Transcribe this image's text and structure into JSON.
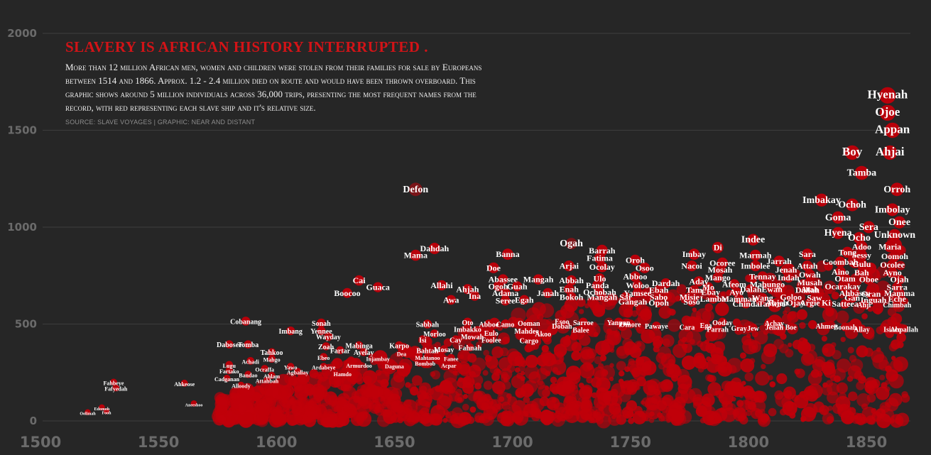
{
  "header": {
    "title": "SLAVERY IS AFRICAN HISTORY INTERRUPTED .",
    "description": "More than 12 million African men, women and children were stolen from their families for sale by Europeans between 1514 and 1866. Approx. 1.2 - 2.4 million died on route and would have been thrown overboard. This graphic shows around 5 million individuals across 36,000 trips, presenting the most frequent names from the record, with red representing each slave ship and it's relative size.",
    "source": "SOURCE: SLAVE VOYAGES | GRAPHIC: NEAR AND DISTANT"
  },
  "colors": {
    "background": "#262626",
    "bubble": "#b8000a",
    "title": "#d31317",
    "text": "#ffffff",
    "grid": "#3d3d3d",
    "tick": "#6b6b6b"
  },
  "chart_data": {
    "type": "scatter",
    "x_axis": {
      "ticks": [
        1500,
        1550,
        1600,
        1650,
        1700,
        1750,
        1800,
        1850
      ],
      "range": [
        1500,
        1870
      ]
    },
    "y_axis": {
      "ticks": [
        0,
        500,
        1000,
        1500,
        2000
      ],
      "range": [
        0,
        2000
      ]
    },
    "grid": "horizontal",
    "points": [
      {
        "name": "Hyenah",
        "x": 1859,
        "y": 1680
      },
      {
        "name": "Ojoe",
        "x": 1859,
        "y": 1590
      },
      {
        "name": "Appan",
        "x": 1861,
        "y": 1500
      },
      {
        "name": "Boy",
        "x": 1844,
        "y": 1385
      },
      {
        "name": "Ahjai",
        "x": 1860,
        "y": 1385
      },
      {
        "name": "Tamba",
        "x": 1848,
        "y": 1280
      },
      {
        "name": "Orroh",
        "x": 1863,
        "y": 1195
      },
      {
        "name": "Defon",
        "x": 1659,
        "y": 1195
      },
      {
        "name": "Imbakay",
        "x": 1831,
        "y": 1140
      },
      {
        "name": "Ochoh",
        "x": 1844,
        "y": 1115
      },
      {
        "name": "Imbolay",
        "x": 1861,
        "y": 1090
      },
      {
        "name": "Goma",
        "x": 1838,
        "y": 1050
      },
      {
        "name": "Onee",
        "x": 1864,
        "y": 1025
      },
      {
        "name": "Sera",
        "x": 1851,
        "y": 1000
      },
      {
        "name": "Hyena",
        "x": 1838,
        "y": 970
      },
      {
        "name": "Unknown",
        "x": 1862,
        "y": 960
      },
      {
        "name": "Ocho",
        "x": 1847,
        "y": 945
      },
      {
        "name": "Indee",
        "x": 1802,
        "y": 935
      },
      {
        "name": "Ogah",
        "x": 1725,
        "y": 915
      },
      {
        "name": "Adoo",
        "x": 1848,
        "y": 900
      },
      {
        "name": "Maria",
        "x": 1860,
        "y": 900
      },
      {
        "name": "Dahdah",
        "x": 1667,
        "y": 890
      },
      {
        "name": "Barrah",
        "x": 1738,
        "y": 880
      },
      {
        "name": "Di",
        "x": 1787,
        "y": 895
      },
      {
        "name": "Tong",
        "x": 1842,
        "y": 870
      },
      {
        "name": "Imbay",
        "x": 1777,
        "y": 860
      },
      {
        "name": "Marmah",
        "x": 1803,
        "y": 855
      },
      {
        "name": "Sara",
        "x": 1825,
        "y": 860
      },
      {
        "name": "Banna",
        "x": 1698,
        "y": 860
      },
      {
        "name": "Sessy",
        "x": 1848,
        "y": 855
      },
      {
        "name": "Oomoh",
        "x": 1862,
        "y": 850
      },
      {
        "name": "Mama",
        "x": 1659,
        "y": 855
      },
      {
        "name": "Fatima",
        "x": 1737,
        "y": 840
      },
      {
        "name": "Oroh",
        "x": 1752,
        "y": 830
      },
      {
        "name": "Jarrah",
        "x": 1813,
        "y": 825
      },
      {
        "name": "Ocoree",
        "x": 1789,
        "y": 815
      },
      {
        "name": "Coombah",
        "x": 1839,
        "y": 820
      },
      {
        "name": "Gulu",
        "x": 1848,
        "y": 810
      },
      {
        "name": "Ocolee",
        "x": 1861,
        "y": 805
      },
      {
        "name": "Arjai",
        "x": 1724,
        "y": 800
      },
      {
        "name": "Ocolay",
        "x": 1738,
        "y": 795
      },
      {
        "name": "Osoo",
        "x": 1756,
        "y": 790
      },
      {
        "name": "Nacoi",
        "x": 1776,
        "y": 800
      },
      {
        "name": "Imbolee",
        "x": 1803,
        "y": 800
      },
      {
        "name": "Attah",
        "x": 1825,
        "y": 800
      },
      {
        "name": "Doe",
        "x": 1692,
        "y": 790
      },
      {
        "name": "Mosah",
        "x": 1788,
        "y": 780
      },
      {
        "name": "Jenah",
        "x": 1816,
        "y": 780
      },
      {
        "name": "Aino",
        "x": 1839,
        "y": 770
      },
      {
        "name": "Bah",
        "x": 1848,
        "y": 765
      },
      {
        "name": "Ayno",
        "x": 1861,
        "y": 765
      },
      {
        "name": "Owah",
        "x": 1826,
        "y": 755
      },
      {
        "name": "Abboo",
        "x": 1752,
        "y": 745
      },
      {
        "name": "Tennay",
        "x": 1806,
        "y": 745
      },
      {
        "name": "Indah",
        "x": 1817,
        "y": 740
      },
      {
        "name": "Ulo",
        "x": 1737,
        "y": 735
      },
      {
        "name": "Mango",
        "x": 1787,
        "y": 740
      },
      {
        "name": "Otam",
        "x": 1841,
        "y": 735
      },
      {
        "name": "Oboe",
        "x": 1851,
        "y": 730
      },
      {
        "name": "Ojah",
        "x": 1864,
        "y": 730
      },
      {
        "name": "Cai",
        "x": 1635,
        "y": 725
      },
      {
        "name": "Abassee",
        "x": 1696,
        "y": 730
      },
      {
        "name": "Mangah",
        "x": 1711,
        "y": 730
      },
      {
        "name": "Abbah",
        "x": 1725,
        "y": 725
      },
      {
        "name": "Dardah",
        "x": 1765,
        "y": 710
      },
      {
        "name": "Aday",
        "x": 1779,
        "y": 720
      },
      {
        "name": "Afeom",
        "x": 1794,
        "y": 705
      },
      {
        "name": "Mabungo",
        "x": 1808,
        "y": 705
      },
      {
        "name": "Musah",
        "x": 1826,
        "y": 715
      },
      {
        "name": "Allahi",
        "x": 1670,
        "y": 700
      },
      {
        "name": "Ogoh",
        "x": 1694,
        "y": 695
      },
      {
        "name": "Guah",
        "x": 1702,
        "y": 695
      },
      {
        "name": "Panda",
        "x": 1736,
        "y": 700
      },
      {
        "name": "Woloo",
        "x": 1753,
        "y": 700
      },
      {
        "name": "Mo",
        "x": 1783,
        "y": 690
      },
      {
        "name": "Ocarakay",
        "x": 1840,
        "y": 695
      },
      {
        "name": "Sarra",
        "x": 1863,
        "y": 690
      },
      {
        "name": "Guaca",
        "x": 1643,
        "y": 690
      },
      {
        "name": "Ahjah",
        "x": 1681,
        "y": 680
      },
      {
        "name": "Enah",
        "x": 1724,
        "y": 680
      },
      {
        "name": "Tam",
        "x": 1777,
        "y": 675
      },
      {
        "name": "Dalah",
        "x": 1801,
        "y": 680
      },
      {
        "name": "Ewan",
        "x": 1810,
        "y": 680
      },
      {
        "name": "Dallah",
        "x": 1825,
        "y": 675
      },
      {
        "name": "Atah",
        "x": 1826,
        "y": 680
      },
      {
        "name": "Boocoo",
        "x": 1630,
        "y": 660
      },
      {
        "name": "Adama",
        "x": 1697,
        "y": 660
      },
      {
        "name": "Janah",
        "x": 1715,
        "y": 660
      },
      {
        "name": "Ochobah",
        "x": 1737,
        "y": 665
      },
      {
        "name": "Yamsee",
        "x": 1753,
        "y": 660
      },
      {
        "name": "Ebah",
        "x": 1762,
        "y": 675
      },
      {
        "name": "Ebay",
        "x": 1784,
        "y": 665
      },
      {
        "name": "Ayo",
        "x": 1795,
        "y": 665
      },
      {
        "name": "Ahbassy",
        "x": 1845,
        "y": 660
      },
      {
        "name": "Oran",
        "x": 1852,
        "y": 655
      },
      {
        "name": "Mamma",
        "x": 1864,
        "y": 660
      },
      {
        "name": "Ina",
        "x": 1684,
        "y": 645
      },
      {
        "name": "Bokoh",
        "x": 1725,
        "y": 640
      },
      {
        "name": "Mangah",
        "x": 1738,
        "y": 640
      },
      {
        "name": "Sar",
        "x": 1748,
        "y": 640
      },
      {
        "name": "Sabo",
        "x": 1762,
        "y": 640
      },
      {
        "name": "Misie",
        "x": 1775,
        "y": 640
      },
      {
        "name": "Lamba",
        "x": 1785,
        "y": 630
      },
      {
        "name": "Mamman",
        "x": 1796,
        "y": 630
      },
      {
        "name": "Wang",
        "x": 1806,
        "y": 635
      },
      {
        "name": "Goloo",
        "x": 1818,
        "y": 640
      },
      {
        "name": "Saw",
        "x": 1828,
        "y": 635
      },
      {
        "name": "Gan",
        "x": 1844,
        "y": 635
      },
      {
        "name": "Inguah",
        "x": 1853,
        "y": 625
      },
      {
        "name": "Eche",
        "x": 1863,
        "y": 630
      },
      {
        "name": "Awa",
        "x": 1674,
        "y": 625
      },
      {
        "name": "Seree",
        "x": 1697,
        "y": 620
      },
      {
        "name": "Egah",
        "x": 1705,
        "y": 625
      },
      {
        "name": "Gangah",
        "x": 1751,
        "y": 615
      },
      {
        "name": "Opoh",
        "x": 1762,
        "y": 610
      },
      {
        "name": "Soso",
        "x": 1776,
        "y": 615
      },
      {
        "name": "Ahjeh",
        "x": 1812,
        "y": 610
      },
      {
        "name": "Chinda",
        "x": 1799,
        "y": 605
      },
      {
        "name": "Tarwoo",
        "x": 1810,
        "y": 605
      },
      {
        "name": "Ojay",
        "x": 1820,
        "y": 610
      },
      {
        "name": "Argie",
        "x": 1826,
        "y": 610
      },
      {
        "name": "Ki",
        "x": 1833,
        "y": 610
      },
      {
        "name": "Satteea",
        "x": 1841,
        "y": 605
      },
      {
        "name": "Ahji",
        "x": 1849,
        "y": 600
      },
      {
        "name": "Chimbah",
        "x": 1863,
        "y": 600
      },
      {
        "name": "Cobanang",
        "x": 1587,
        "y": 515
      },
      {
        "name": "Sabbah",
        "x": 1664,
        "y": 500
      },
      {
        "name": "Sonah",
        "x": 1619,
        "y": 505
      },
      {
        "name": "Oto",
        "x": 1681,
        "y": 510
      },
      {
        "name": "Abboe",
        "x": 1690,
        "y": 500
      },
      {
        "name": "Camo",
        "x": 1697,
        "y": 500
      },
      {
        "name": "Ooman",
        "x": 1707,
        "y": 505
      },
      {
        "name": "Dobah",
        "x": 1721,
        "y": 490
      },
      {
        "name": "Esoo",
        "x": 1721,
        "y": 515
      },
      {
        "name": "Sarroe",
        "x": 1730,
        "y": 510
      },
      {
        "name": "Yanpan",
        "x": 1745,
        "y": 510
      },
      {
        "name": "Omore",
        "x": 1750,
        "y": 500
      },
      {
        "name": "Pawaye",
        "x": 1761,
        "y": 490
      },
      {
        "name": "Cara",
        "x": 1774,
        "y": 485
      },
      {
        "name": "Ega",
        "x": 1782,
        "y": 495
      },
      {
        "name": "Parrah",
        "x": 1787,
        "y": 475
      },
      {
        "name": "Ooday",
        "x": 1789,
        "y": 510
      },
      {
        "name": "Gray",
        "x": 1796,
        "y": 480
      },
      {
        "name": "Jew",
        "x": 1802,
        "y": 480
      },
      {
        "name": "Jenah",
        "x": 1811,
        "y": 485
      },
      {
        "name": "Achay",
        "x": 1811,
        "y": 505
      },
      {
        "name": "Boe",
        "x": 1818,
        "y": 485
      },
      {
        "name": "Ahmee",
        "x": 1833,
        "y": 490
      },
      {
        "name": "Boonah",
        "x": 1841,
        "y": 485
      },
      {
        "name": "Allay",
        "x": 1848,
        "y": 475
      },
      {
        "name": "Isiaco",
        "x": 1861,
        "y": 475
      },
      {
        "name": "Ahpallah",
        "x": 1866,
        "y": 475
      },
      {
        "name": "Imbang",
        "x": 1606,
        "y": 465
      },
      {
        "name": "Yennee",
        "x": 1619,
        "y": 465
      },
      {
        "name": "Morloo",
        "x": 1667,
        "y": 450
      },
      {
        "name": "Imbakko",
        "x": 1681,
        "y": 475
      },
      {
        "name": "Mahdee",
        "x": 1706,
        "y": 465
      },
      {
        "name": "Akoo",
        "x": 1713,
        "y": 450
      },
      {
        "name": "Balee",
        "x": 1729,
        "y": 470
      },
      {
        "name": "Wayday",
        "x": 1622,
        "y": 435
      },
      {
        "name": "Isi",
        "x": 1662,
        "y": 420
      },
      {
        "name": "Cay",
        "x": 1676,
        "y": 420
      },
      {
        "name": "Mowah",
        "x": 1683,
        "y": 435
      },
      {
        "name": "Eulo",
        "x": 1691,
        "y": 455
      },
      {
        "name": "Foolee",
        "x": 1691,
        "y": 420
      },
      {
        "name": "Cargo",
        "x": 1707,
        "y": 415
      },
      {
        "name": "Dabosee",
        "x": 1580,
        "y": 395
      },
      {
        "name": "Tomba",
        "x": 1588,
        "y": 395
      },
      {
        "name": "Karpo",
        "x": 1652,
        "y": 390
      },
      {
        "name": "Mabinga",
        "x": 1635,
        "y": 390
      },
      {
        "name": "Zoah",
        "x": 1621,
        "y": 385
      },
      {
        "name": "Tahkoo",
        "x": 1598,
        "y": 355
      },
      {
        "name": "Fartar",
        "x": 1627,
        "y": 365
      },
      {
        "name": "Ayelay",
        "x": 1637,
        "y": 355
      },
      {
        "name": "Dea",
        "x": 1653,
        "y": 350
      },
      {
        "name": "Bahtah",
        "x": 1664,
        "y": 365
      },
      {
        "name": "Mosay",
        "x": 1671,
        "y": 370
      },
      {
        "name": "Fahnah",
        "x": 1682,
        "y": 380
      },
      {
        "name": "Achadi",
        "x": 1589,
        "y": 310
      },
      {
        "name": "Mahgo",
        "x": 1598,
        "y": 320
      },
      {
        "name": "Ebeo",
        "x": 1620,
        "y": 330
      },
      {
        "name": "Injambay",
        "x": 1643,
        "y": 325
      },
      {
        "name": "Mahtanoo",
        "x": 1664,
        "y": 330
      },
      {
        "name": "Fanee",
        "x": 1674,
        "y": 325
      },
      {
        "name": "Lugu",
        "x": 1580,
        "y": 290
      },
      {
        "name": "Ocraffa",
        "x": 1595,
        "y": 270
      },
      {
        "name": "Yawo",
        "x": 1606,
        "y": 280
      },
      {
        "name": "Armurdoo",
        "x": 1635,
        "y": 290
      },
      {
        "name": "Daguna",
        "x": 1650,
        "y": 285
      },
      {
        "name": "Bombob",
        "x": 1663,
        "y": 300
      },
      {
        "name": "Acpar",
        "x": 1673,
        "y": 290
      },
      {
        "name": "Fartako",
        "x": 1580,
        "y": 260
      },
      {
        "name": "Bandao",
        "x": 1588,
        "y": 240
      },
      {
        "name": "Ahlam",
        "x": 1598,
        "y": 235
      },
      {
        "name": "Agballay",
        "x": 1609,
        "y": 255
      },
      {
        "name": "Ardabeye",
        "x": 1620,
        "y": 280
      },
      {
        "name": "Hamdo",
        "x": 1628,
        "y": 245
      },
      {
        "name": "Cadganan",
        "x": 1579,
        "y": 220
      },
      {
        "name": "Attahbah",
        "x": 1596,
        "y": 210
      },
      {
        "name": "Alloody",
        "x": 1585,
        "y": 185
      },
      {
        "name": "Ahkeose",
        "x": 1561,
        "y": 195
      },
      {
        "name": "Fahbeye",
        "x": 1531,
        "y": 200
      },
      {
        "name": "Fafyedah",
        "x": 1532,
        "y": 170
      },
      {
        "name": "Aneeshoo",
        "x": 1565,
        "y": 90
      },
      {
        "name": "Edomoh",
        "x": 1526,
        "y": 70
      },
      {
        "name": "Oolimah",
        "x": 1520,
        "y": 45
      },
      {
        "name": "Fooh",
        "x": 1528,
        "y": 50
      }
    ]
  }
}
